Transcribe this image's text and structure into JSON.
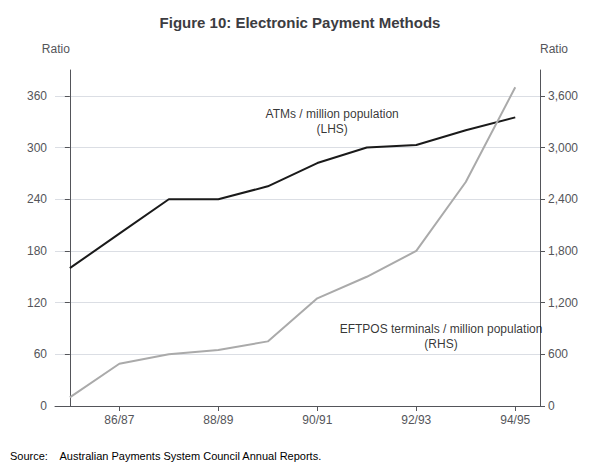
{
  "chart_data": {
    "type": "line",
    "title": "Figure 10: Electronic Payment Methods",
    "source": "Source:    Australian Payments System Council Annual Reports.",
    "x": [
      0,
      1,
      2,
      3,
      4,
      5,
      6,
      7,
      8,
      9
    ],
    "xlim": [
      -0.3,
      9.5
    ],
    "xticks": [
      {
        "value": 1,
        "label": "86/87"
      },
      {
        "value": 3,
        "label": "88/89"
      },
      {
        "value": 5,
        "label": "90/91"
      },
      {
        "value": 7,
        "label": "92/93"
      },
      {
        "value": 9,
        "label": "94/95"
      }
    ],
    "ylabel": "Ratio",
    "y2label": "Ratio",
    "ylim": [
      0,
      390
    ],
    "yticks": [
      0,
      60,
      120,
      180,
      240,
      300,
      360
    ],
    "y2lim": [
      0,
      3900
    ],
    "y2ticks": [
      0,
      600,
      1200,
      1800,
      2400,
      3000,
      3600
    ],
    "grid": true,
    "series": [
      {
        "color": "#1a1a1a",
        "axis": "y",
        "values": [
          160,
          200,
          240,
          240,
          255,
          282,
          300,
          303,
          320,
          335
        ]
      },
      {
        "color": "#aaaaaa",
        "axis": "y2",
        "values": [
          100,
          490,
          600,
          650,
          750,
          1250,
          1500,
          1800,
          2600,
          3700
        ]
      }
    ],
    "annotations": [
      {
        "text": "ATMs / million population\n(LHS)",
        "x": 5.3,
        "y": 310
      },
      {
        "text": "EFTPOS terminals / million population\n(RHS)",
        "x": 7.5,
        "y": 100
      }
    ]
  }
}
